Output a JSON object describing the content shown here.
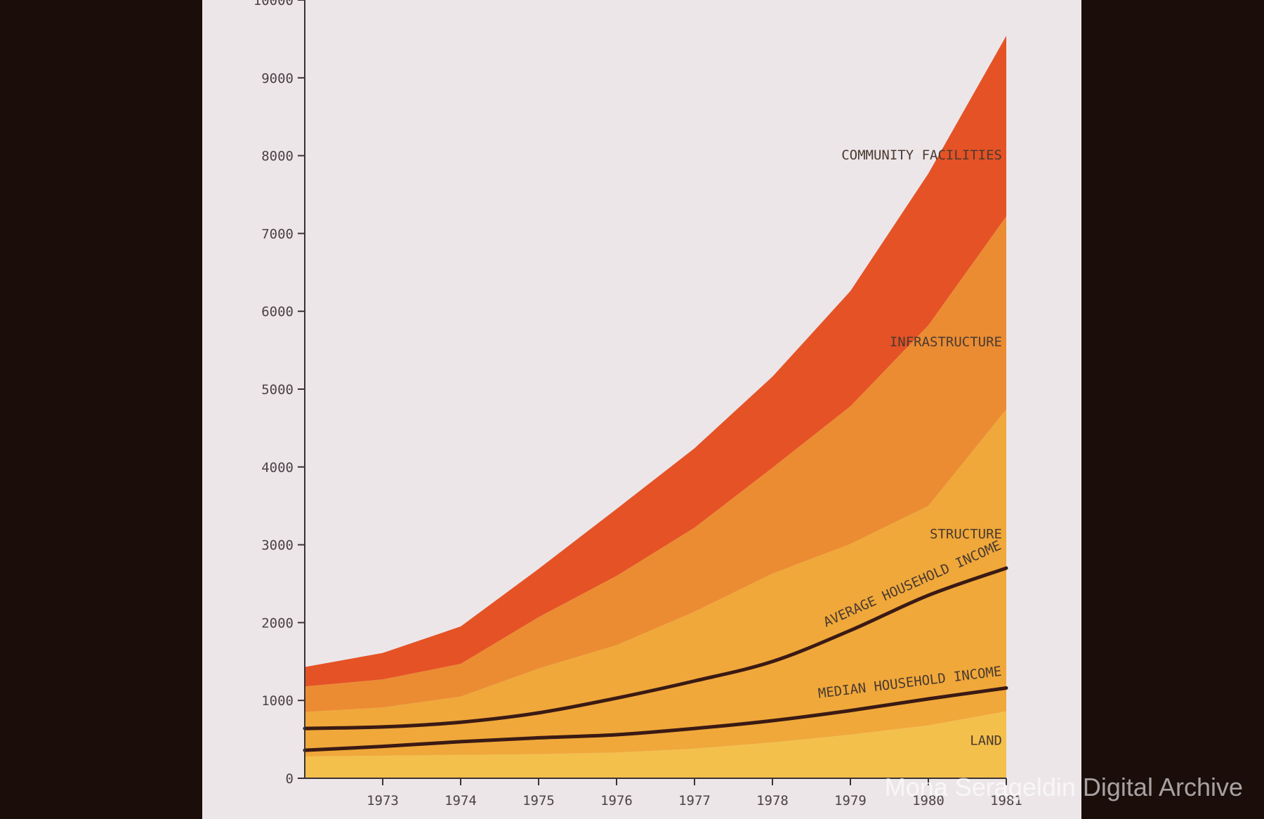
{
  "chart_data": {
    "type": "area",
    "stacked": true,
    "x": [
      1972,
      1973,
      1974,
      1975,
      1976,
      1977,
      1978,
      1979,
      1980,
      1981
    ],
    "x_tick_labels": [
      "1973",
      "1974",
      "1975",
      "1976",
      "1977",
      "1978",
      "1979",
      "1980",
      "1981"
    ],
    "y_ticks": [
      0,
      1000,
      2000,
      3000,
      4000,
      5000,
      6000,
      7000,
      8000,
      9000,
      10000
    ],
    "ylim": [
      0,
      10000
    ],
    "xlim": [
      1972,
      1981
    ],
    "grid": false,
    "series": [
      {
        "name": "LAND",
        "values": [
          280,
          290,
          300,
          310,
          330,
          380,
          460,
          560,
          680,
          860
        ],
        "color": "#f4c04c"
      },
      {
        "name": "STRUCTURE",
        "values": [
          570,
          620,
          750,
          1100,
          1380,
          1760,
          2170,
          2450,
          2820,
          3880
        ],
        "color": "#f0a83a"
      },
      {
        "name": "INFRASTRUCTURE",
        "values": [
          330,
          360,
          420,
          660,
          890,
          1080,
          1360,
          1770,
          2320,
          2480
        ],
        "color": "#eb8c33"
      },
      {
        "name": "COMMUNITY FACILITIES",
        "values": [
          250,
          340,
          480,
          620,
          860,
          1020,
          1170,
          1480,
          1950,
          2320
        ],
        "color": "#e55225"
      }
    ],
    "lines": [
      {
        "name": "AVERAGE HOUSEHOLD INCOME",
        "values": [
          640,
          660,
          720,
          840,
          1030,
          1250,
          1500,
          1900,
          2350,
          2700
        ],
        "color": "#3a1a14"
      },
      {
        "name": "MEDIAN HOUSEHOLD INCOME",
        "values": [
          360,
          410,
          470,
          520,
          560,
          640,
          740,
          870,
          1020,
          1160
        ],
        "color": "#3a1a14"
      }
    ]
  },
  "watermark": "Mona Serageldin Digital Archive"
}
